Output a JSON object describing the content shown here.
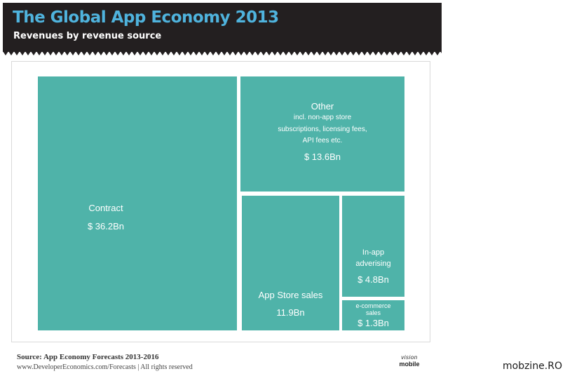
{
  "header": {
    "title": "The Global App Economy 2013",
    "subtitle": "Revenues by revenue source"
  },
  "chart_data": {
    "type": "treemap",
    "title": "The Global App Economy 2013",
    "subtitle": "Revenues by revenue source",
    "unit": "$ Bn",
    "color": "#4fb3a9",
    "tiles": [
      {
        "name": "Contract",
        "value": 36.2,
        "value_label": "$ 36.2Bn",
        "note": ""
      },
      {
        "name": "Other",
        "value": 13.6,
        "value_label": "$ 13.6Bn",
        "note": "incl. non-app store subscriptions, licensing fees, API fees etc."
      },
      {
        "name": "App Store sales",
        "value": 11.9,
        "value_label": "11.9Bn",
        "note": ""
      },
      {
        "name": "In-app adverising",
        "value": 4.8,
        "value_label": "$ 4.8Bn",
        "note": ""
      },
      {
        "name": "e-commerce sales",
        "value": 1.3,
        "value_label": "$ 1.3Bn",
        "note": ""
      }
    ]
  },
  "tile_text": {
    "contract": {
      "name": "Contract",
      "value": "$ 36.2Bn"
    },
    "other": {
      "name": "Other",
      "note_1": "incl. non-app store",
      "note_2": "subscriptions, licensing fees,",
      "note_3": "API fees etc.",
      "value": "$ 13.6Bn"
    },
    "appstore": {
      "name": "App Store sales",
      "value": "11.9Bn"
    },
    "inapp": {
      "name_1": "In-app",
      "name_2": "adverising",
      "value": "$ 4.8Bn"
    },
    "ecommerce": {
      "name_1": "e-commerce",
      "name_2": "sales",
      "value": "$ 1.3Bn"
    }
  },
  "footer": {
    "source": "Source:  App Economy Forecasts 2013-2016",
    "url": "www.DeveloperEconomics.com/Forecasts | All rights reserved",
    "logo_line1": "vision",
    "logo_line2": "mobile"
  },
  "watermark": "mobzine.RO"
}
